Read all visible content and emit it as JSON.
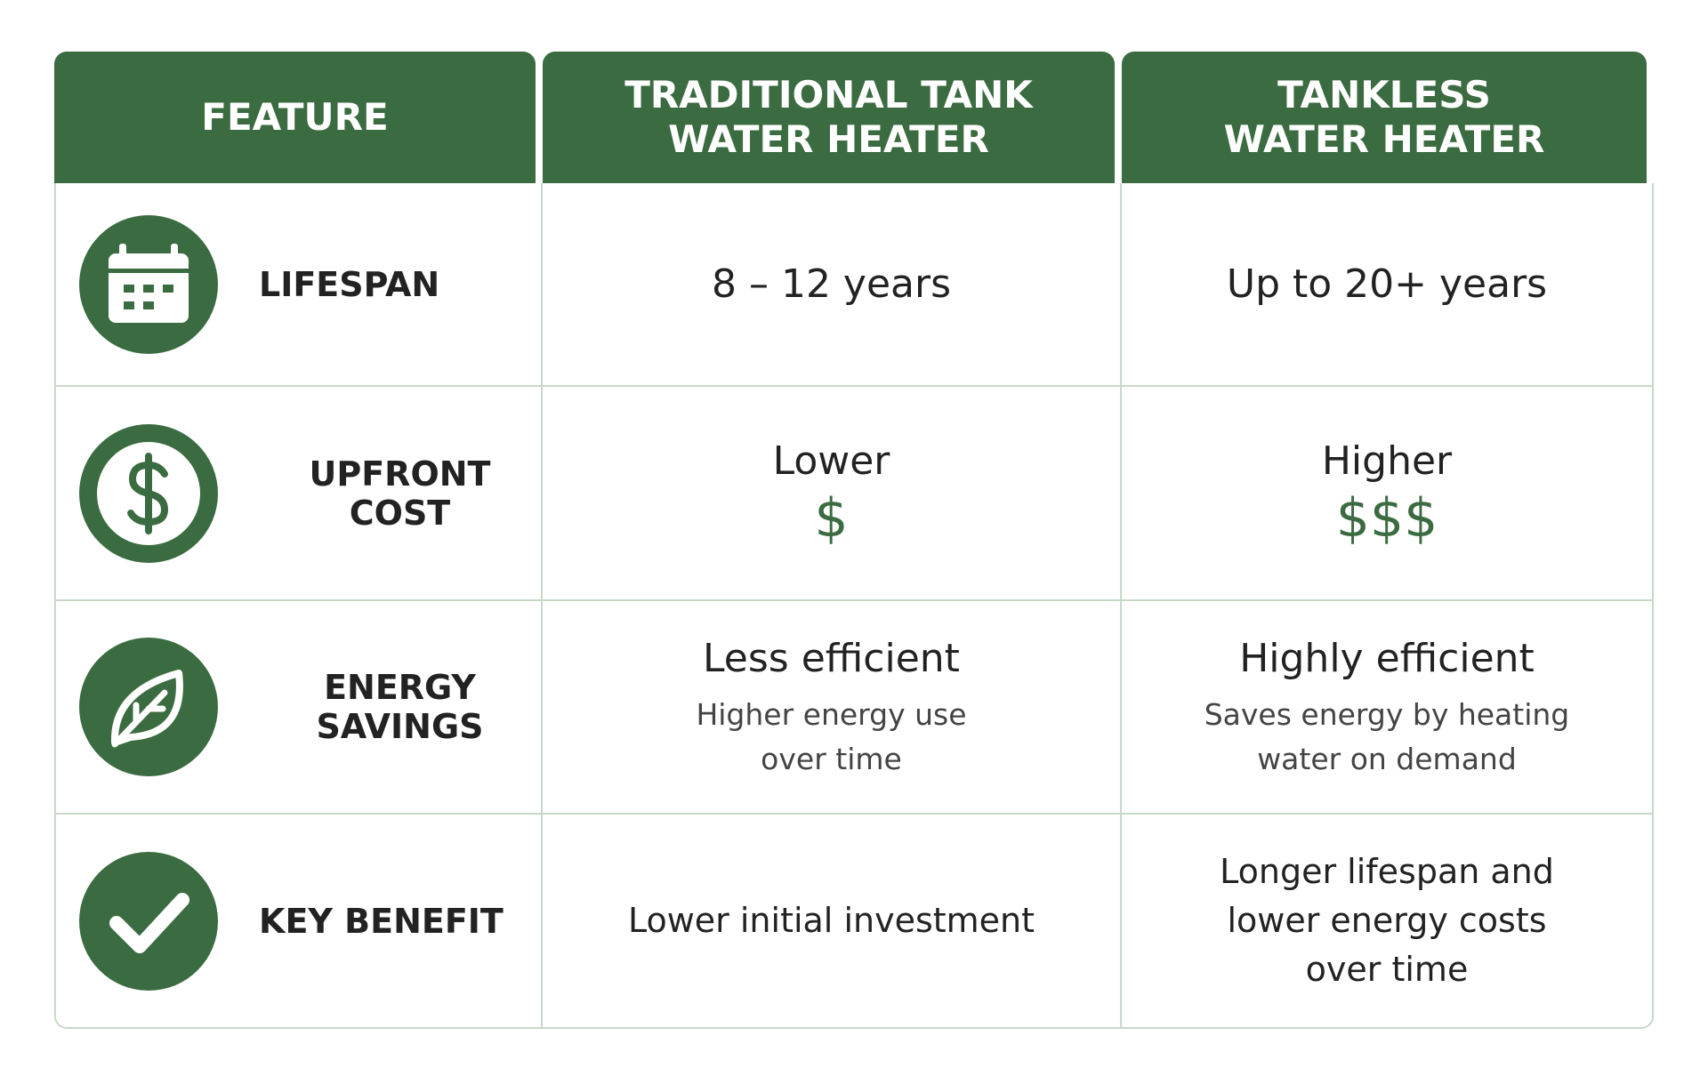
{
  "table": {
    "header": [
      [
        "FEATURE"
      ],
      [
        "TRADITIONAL TANK",
        "WATER HEATER"
      ],
      [
        "TANKLESS",
        "WATER HEATER"
      ]
    ],
    "rows": [
      {
        "feature": "LIFESPAN",
        "cells": [
          {
            "main": [
              "8 – 12 years"
            ]
          },
          {
            "main": [
              "Up to 20+ years"
            ]
          }
        ]
      },
      {
        "feature": "UPFRONT COST",
        "cells": [
          {
            "main": [
              "Lower"
            ],
            "symbol": "$"
          },
          {
            "main": [
              "Higher"
            ],
            "symbol": "$$$"
          }
        ]
      },
      {
        "feature": "ENERGY SAVINGS",
        "cells": [
          {
            "main": [
              "Less efficient"
            ],
            "sub": [
              "Higher energy use",
              "over time"
            ]
          },
          {
            "main": [
              "Highly efficient"
            ],
            "sub": [
              "Saves energy by heating",
              "water on demand"
            ]
          }
        ]
      },
      {
        "feature": "KEY BENEFIT",
        "cells": [
          {
            "small": [
              "Lower initial investment"
            ]
          },
          {
            "small": [
              "Longer lifespan and",
              "lower energy costs",
              "over time"
            ]
          }
        ]
      }
    ]
  }
}
